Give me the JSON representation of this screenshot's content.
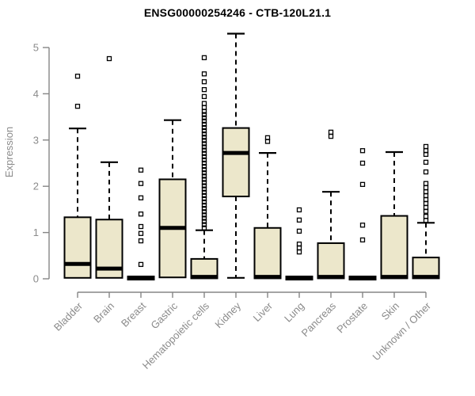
{
  "chart_data": {
    "type": "boxplot",
    "title": "ENSG00000254246 - CTB-120L21.1",
    "ylabel": "Expression",
    "xlabel": "",
    "ylim": [
      0,
      5.4
    ],
    "yticks": [
      0,
      1,
      2,
      3,
      4,
      5
    ],
    "grid": false,
    "colors": {
      "box_fill": "#ECE7CB",
      "box_border": "#000000",
      "median": "#000000",
      "whisker": "#000000",
      "outlier": "#000000",
      "axis": "#858585",
      "tick_label": "#8B8B8B",
      "title": "#000000"
    },
    "categories": [
      "Bladder",
      "Brain",
      "Breast",
      "Gastric",
      "Hematopoietic cells",
      "Kidney",
      "Liver",
      "Lung",
      "Pancreas",
      "Prostate",
      "Skin",
      "Unknown / Other"
    ],
    "series": [
      {
        "category": "Bladder",
        "q1": 0.02,
        "median": 0.32,
        "q3": 1.33,
        "whisker_low": 0.02,
        "whisker_high": 3.25,
        "outliers": [
          3.73,
          4.38
        ]
      },
      {
        "category": "Brain",
        "q1": 0.02,
        "median": 0.22,
        "q3": 1.28,
        "whisker_low": 0.02,
        "whisker_high": 2.52,
        "outliers": [
          4.76
        ]
      },
      {
        "category": "Breast",
        "q1": 0.0,
        "median": 0.02,
        "q3": 0.05,
        "whisker_low": 0.0,
        "whisker_high": 0.05,
        "outliers": [
          0.31,
          0.82,
          0.98,
          1.13,
          1.4,
          1.75,
          2.06,
          2.35
        ]
      },
      {
        "category": "Gastric",
        "q1": 0.03,
        "median": 1.1,
        "q3": 2.15,
        "whisker_low": 0.03,
        "whisker_high": 3.43,
        "outliers": []
      },
      {
        "category": "Hematopoietic cells",
        "q1": 0.01,
        "median": 0.04,
        "q3": 0.43,
        "whisker_low": 0.01,
        "whisker_high": 1.05,
        "outliers": [
          1.1,
          1.17,
          1.24,
          1.31,
          1.38,
          1.45,
          1.52,
          1.59,
          1.66,
          1.73,
          1.8,
          1.87,
          1.94,
          2.01,
          2.08,
          2.15,
          2.22,
          2.29,
          2.36,
          2.43,
          2.5,
          2.57,
          2.64,
          2.71,
          2.78,
          2.85,
          2.92,
          2.99,
          3.06,
          3.13,
          3.2,
          3.27,
          3.34,
          3.41,
          3.48,
          3.55,
          3.62,
          3.7,
          3.79,
          3.94,
          4.09,
          4.26,
          4.43,
          4.78
        ]
      },
      {
        "category": "Kidney",
        "q1": 1.78,
        "median": 2.72,
        "q3": 3.26,
        "whisker_low": 0.02,
        "whisker_high": 5.3,
        "outliers": []
      },
      {
        "category": "Liver",
        "q1": 0.01,
        "median": 0.04,
        "q3": 1.1,
        "whisker_low": 0.01,
        "whisker_high": 2.72,
        "outliers": [
          2.97,
          3.05
        ]
      },
      {
        "category": "Lung",
        "q1": 0.0,
        "median": 0.02,
        "q3": 0.05,
        "whisker_low": 0.0,
        "whisker_high": 0.05,
        "outliers": [
          0.58,
          0.67,
          0.75,
          1.03,
          1.27,
          1.49
        ]
      },
      {
        "category": "Pancreas",
        "q1": 0.01,
        "median": 0.04,
        "q3": 0.77,
        "whisker_low": 0.01,
        "whisker_high": 1.88,
        "outliers": [
          3.08,
          3.17
        ]
      },
      {
        "category": "Prostate",
        "q1": 0.0,
        "median": 0.02,
        "q3": 0.05,
        "whisker_low": 0.0,
        "whisker_high": 0.05,
        "outliers": [
          0.84,
          1.16,
          2.04,
          2.5,
          2.77
        ]
      },
      {
        "category": "Skin",
        "q1": 0.01,
        "median": 0.04,
        "q3": 1.36,
        "whisker_low": 0.01,
        "whisker_high": 2.74,
        "outliers": []
      },
      {
        "category": "Unknown / Other",
        "q1": 0.01,
        "median": 0.04,
        "q3": 0.46,
        "whisker_low": 0.01,
        "whisker_high": 1.21,
        "outliers": [
          1.26,
          1.35,
          1.46,
          1.54,
          1.63,
          1.71,
          1.8,
          1.88,
          1.97,
          2.06,
          2.31,
          2.52,
          2.69,
          2.77,
          2.86
        ]
      }
    ]
  }
}
